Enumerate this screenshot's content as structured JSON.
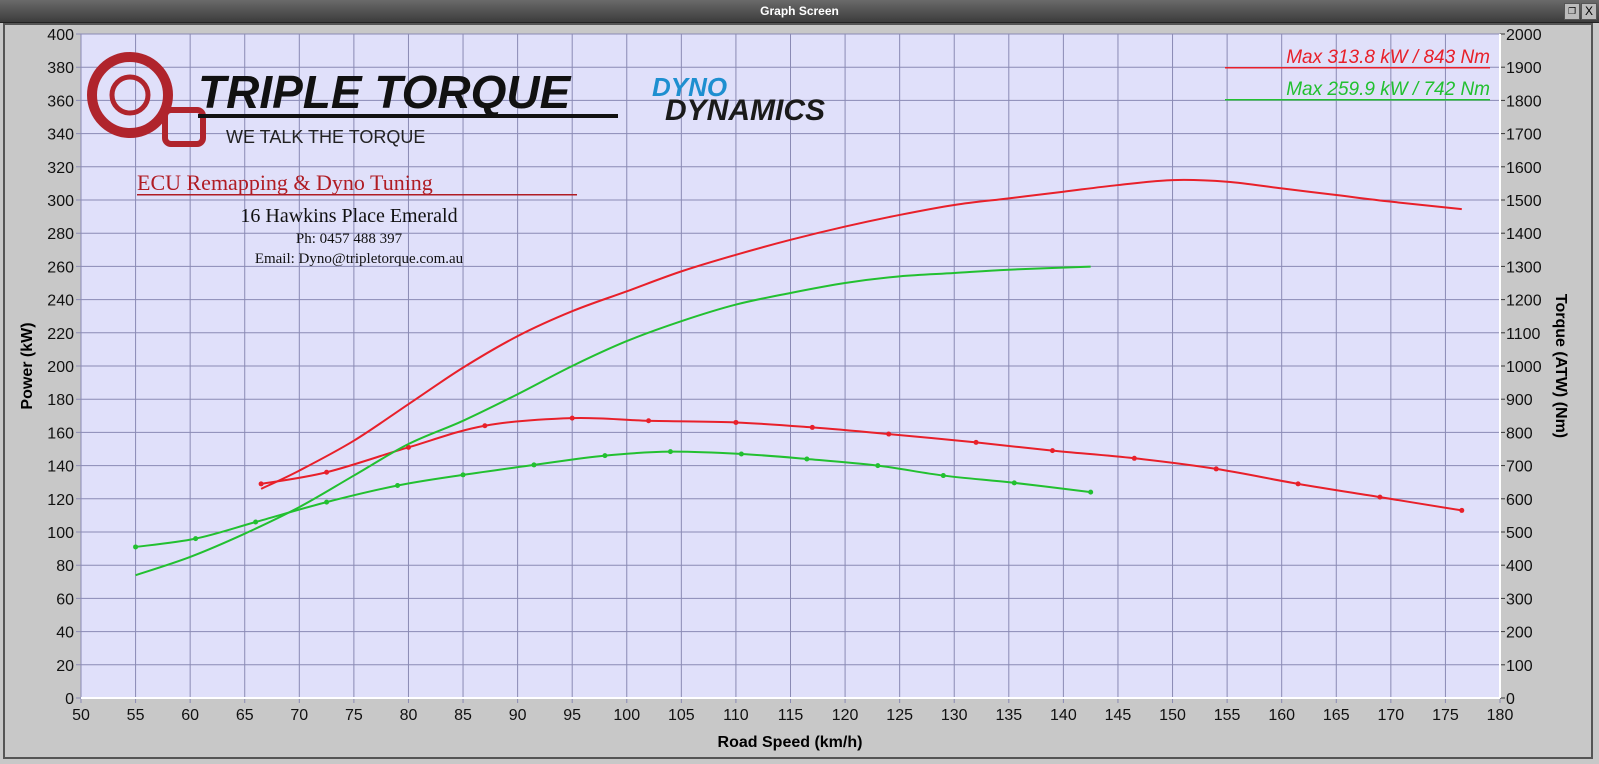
{
  "window": {
    "title": "Graph Screen",
    "restore_icon": "restore-icon",
    "close_icon": "close-icon",
    "close_label": "X"
  },
  "branding": {
    "logo_text": "TRIPLE TORQUE",
    "tagline": "WE TALK THE TORQUE",
    "partner_logo_top": "DYNO",
    "partner_logo_bottom": "DYNAMICS",
    "service": "ECU Remapping & Dyno Tuning",
    "address": "16 Hawkins Place Emerald",
    "phone": "Ph: 0457 488 397",
    "email": "Email: Dyno@tripletorque.com.au"
  },
  "chart_data": {
    "type": "line",
    "xlabel": "Road Speed (km/h)",
    "ylabel": "Power (kW)",
    "y2label": "Torque (ATW) (Nm)",
    "xlim": [
      50,
      180
    ],
    "ylim": [
      0,
      400
    ],
    "y2lim": [
      0,
      2000
    ],
    "xticks": [
      50,
      55,
      60,
      65,
      70,
      75,
      80,
      85,
      90,
      95,
      100,
      105,
      110,
      115,
      120,
      125,
      130,
      135,
      140,
      145,
      150,
      155,
      160,
      165,
      170,
      175,
      180
    ],
    "yticks": [
      0,
      20,
      40,
      60,
      80,
      100,
      120,
      140,
      160,
      180,
      200,
      220,
      240,
      260,
      280,
      300,
      320,
      340,
      360,
      380,
      400
    ],
    "y2ticks": [
      0,
      100,
      200,
      300,
      400,
      500,
      600,
      700,
      800,
      900,
      1000,
      1100,
      1200,
      1300,
      1400,
      1500,
      1600,
      1700,
      1800,
      1900,
      2000
    ],
    "grid": true,
    "legend_placement": "top-right",
    "legend": [
      {
        "text": "Max 313.8 kW  / 843 Nm",
        "color": "#e8202a"
      },
      {
        "text": "Max 259.9 kW  / 742 Nm",
        "color": "#22c030"
      }
    ],
    "colors": {
      "plot_bg": "#e0e0fa",
      "grid": "#8a8ab4",
      "frame_bg": "#c8c8c8"
    },
    "series": [
      {
        "kind": "power",
        "axis": "left",
        "color": "#e8202a",
        "x": [
          66.5,
          70,
          75,
          80,
          85,
          90,
          95,
          100,
          105,
          110,
          115,
          120,
          125,
          130,
          135,
          140,
          145,
          150,
          155,
          160,
          165,
          170,
          176.5
        ],
        "y": [
          126,
          137,
          155,
          177,
          199,
          218,
          233,
          245,
          257,
          267,
          276,
          284,
          291,
          297,
          301,
          305,
          309,
          312,
          311,
          307,
          303,
          299,
          294.5
        ]
      },
      {
        "kind": "torque",
        "axis": "right",
        "color": "#e8202a",
        "x": [
          66.5,
          72.5,
          80,
          87,
          95,
          102,
          110,
          117,
          124,
          132,
          139,
          146.5,
          154,
          161.5,
          169,
          176.5
        ],
        "y": [
          645,
          680,
          755,
          820,
          843,
          835,
          830,
          815,
          795,
          770,
          745,
          722,
          690,
          645,
          605,
          565
        ]
      },
      {
        "kind": "power",
        "axis": "left",
        "color": "#22c030",
        "x": [
          55,
          60,
          65,
          70,
          75,
          80,
          85,
          90,
          95,
          100,
          105,
          110,
          115,
          120,
          125,
          130,
          135,
          142.5
        ],
        "y": [
          74,
          85,
          99,
          115,
          134,
          153,
          167,
          183,
          200,
          215,
          227,
          237,
          244,
          250,
          254,
          256,
          258,
          259.9
        ]
      },
      {
        "kind": "torque",
        "axis": "right",
        "color": "#22c030",
        "x": [
          55,
          60.5,
          66,
          72.5,
          79,
          85,
          91.5,
          98,
          104,
          110.5,
          116.5,
          123,
          129,
          135.5,
          142.5
        ],
        "y": [
          455,
          480,
          530,
          590,
          640,
          672,
          702,
          730,
          742,
          735,
          720,
          700,
          670,
          648,
          620
        ]
      }
    ]
  }
}
